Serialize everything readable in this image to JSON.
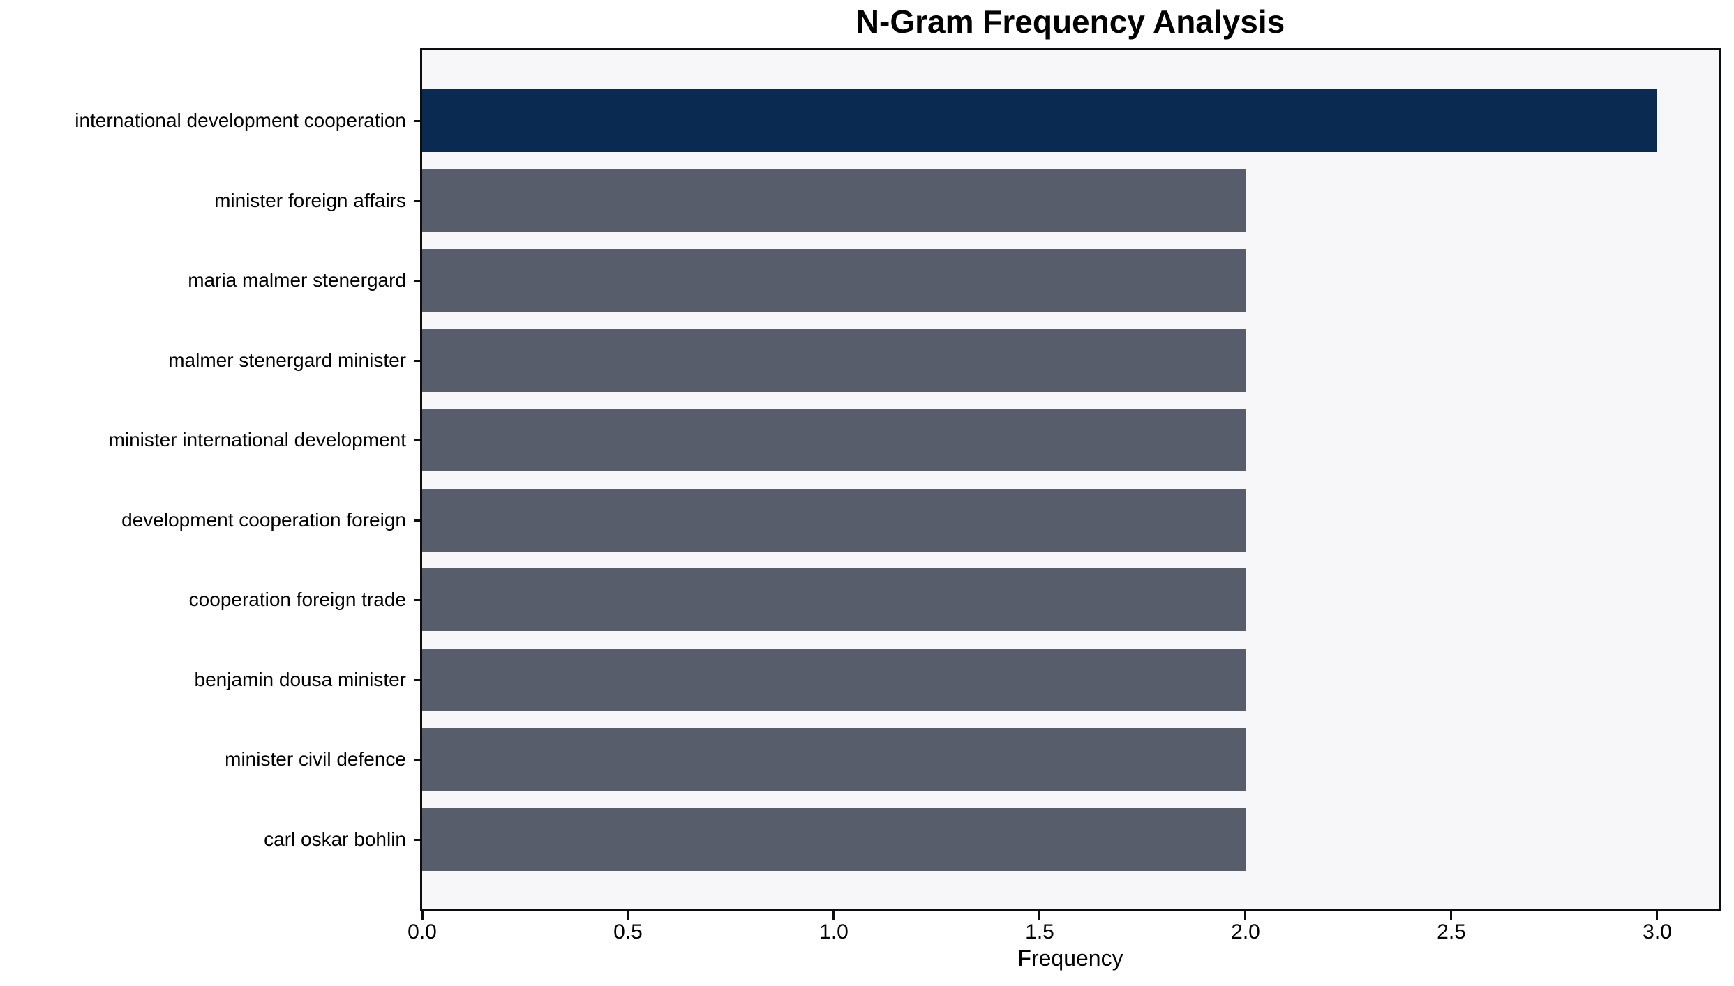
{
  "title": "N-Gram Frequency Analysis",
  "chart_data": {
    "type": "bar",
    "orientation": "horizontal",
    "title": "N-Gram Frequency Analysis",
    "xlabel": "Frequency",
    "ylabel": "",
    "categories": [
      "international development cooperation",
      "minister foreign affairs",
      "maria malmer stenergard",
      "malmer stenergard minister",
      "minister international development",
      "development cooperation foreign",
      "cooperation foreign trade",
      "benjamin dousa minister",
      "minister civil defence",
      "carl oskar bohlin"
    ],
    "values": [
      3,
      2,
      2,
      2,
      2,
      2,
      2,
      2,
      2,
      2
    ],
    "bar_colors": [
      "#0a2a52",
      "#585d6c",
      "#585d6c",
      "#585d6c",
      "#585d6c",
      "#585d6c",
      "#585d6c",
      "#585d6c",
      "#585d6c",
      "#585d6c"
    ],
    "xlim": [
      0,
      3.15
    ],
    "xticks": [
      {
        "value": 0.0,
        "label": "0.0"
      },
      {
        "value": 0.5,
        "label": "0.5"
      },
      {
        "value": 1.0,
        "label": "1.0"
      },
      {
        "value": 1.5,
        "label": "1.5"
      },
      {
        "value": 2.0,
        "label": "2.0"
      },
      {
        "value": 2.5,
        "label": "2.5"
      },
      {
        "value": 3.0,
        "label": "3.0"
      }
    ],
    "grid": false,
    "legend": false,
    "colors": {
      "highlight_bar": "#0a2a52",
      "default_bar": "#585d6c",
      "plot_background": "#f7f7f9",
      "figure_background": "#ffffff",
      "frame": "#0d0d0d",
      "text": "#000000"
    }
  }
}
